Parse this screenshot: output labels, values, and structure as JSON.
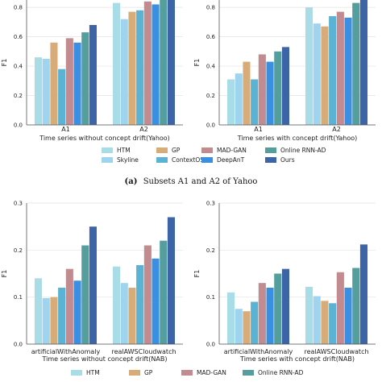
{
  "colors": {
    "HTM": "#a8dde8",
    "Skyline": "#9fd4ee",
    "GP": "#d8ac78",
    "ContextOSE": "#5bb3d4",
    "MAD-GAN": "#c28b90",
    "DeepAnT": "#3a8fe0",
    "Online RNN-AD": "#549e9e",
    "Ours": "#3d64a6"
  },
  "legend_a": {
    "entries": [
      "HTM",
      "GP",
      "MAD-GAN",
      "Online RNN-AD",
      "Skyline",
      "ContextOSE",
      "DeepAnT",
      "Ours"
    ]
  },
  "legend_b": {
    "entries_visible": [
      "HTM",
      "GP",
      "MAD-GAN",
      "Online RNN-AD"
    ]
  },
  "caption_a": {
    "label": "(a)",
    "text": "Subsets A1 and A2 of Yahoo"
  },
  "chart_data": [
    {
      "type": "bar",
      "categories": [
        "A1",
        "A2"
      ],
      "xlabel": "Time series without concept drift(Yahoo)",
      "ylabel": "F1",
      "ylim": [
        0,
        0.85
      ],
      "yticks": [
        "0.0",
        "0.2",
        "0.4",
        "0.6",
        "0.8"
      ],
      "series": [
        {
          "name": "HTM",
          "values": [
            0.46,
            0.83
          ]
        },
        {
          "name": "Skyline",
          "values": [
            0.45,
            0.72
          ]
        },
        {
          "name": "GP",
          "values": [
            0.56,
            0.77
          ]
        },
        {
          "name": "ContextOSE",
          "values": [
            0.38,
            0.78
          ]
        },
        {
          "name": "MAD-GAN",
          "values": [
            0.59,
            0.84
          ]
        },
        {
          "name": "DeepAnT",
          "values": [
            0.56,
            0.82
          ]
        },
        {
          "name": "Online RNN-AD",
          "values": [
            0.63,
            0.88
          ]
        },
        {
          "name": "Ours",
          "values": [
            0.68,
            0.9
          ]
        }
      ]
    },
    {
      "type": "bar",
      "categories": [
        "A1",
        "A2"
      ],
      "xlabel": "Time series with concept drift(Yahoo)",
      "ylabel": "F1",
      "ylim": [
        0,
        0.85
      ],
      "yticks": [
        "0.0",
        "0.2",
        "0.4",
        "0.6",
        "0.8"
      ],
      "series": [
        {
          "name": "HTM",
          "values": [
            0.31,
            0.8
          ]
        },
        {
          "name": "Skyline",
          "values": [
            0.35,
            0.69
          ]
        },
        {
          "name": "GP",
          "values": [
            0.43,
            0.67
          ]
        },
        {
          "name": "ContextOSE",
          "values": [
            0.31,
            0.74
          ]
        },
        {
          "name": "MAD-GAN",
          "values": [
            0.48,
            0.77
          ]
        },
        {
          "name": "DeepAnT",
          "values": [
            0.43,
            0.73
          ]
        },
        {
          "name": "Online RNN-AD",
          "values": [
            0.5,
            0.83
          ]
        },
        {
          "name": "Ours",
          "values": [
            0.53,
            0.95
          ]
        }
      ]
    },
    {
      "type": "bar",
      "categories": [
        "artificialWithAnomaly",
        "realAWSCloudwatch"
      ],
      "xlabel": "Time series without concept drift(NAB)",
      "ylabel": "F1",
      "ylim": [
        0,
        0.3
      ],
      "yticks": [
        "0.0",
        "0.1",
        "0.2",
        "0.3"
      ],
      "series": [
        {
          "name": "HTM",
          "values": [
            0.14,
            0.165
          ]
        },
        {
          "name": "Skyline",
          "values": [
            0.098,
            0.13
          ]
        },
        {
          "name": "GP",
          "values": [
            0.1,
            0.12
          ]
        },
        {
          "name": "ContextOSE",
          "values": [
            0.12,
            0.168
          ]
        },
        {
          "name": "MAD-GAN",
          "values": [
            0.16,
            0.21
          ]
        },
        {
          "name": "DeepAnT",
          "values": [
            0.135,
            0.182
          ]
        },
        {
          "name": "Online RNN-AD",
          "values": [
            0.21,
            0.22
          ]
        },
        {
          "name": "Ours",
          "values": [
            0.25,
            0.27
          ]
        }
      ]
    },
    {
      "type": "bar",
      "categories": [
        "artificialWithAnomaly",
        "realAWSCloudwatch"
      ],
      "xlabel": "Time series with concept drift(NAB)",
      "ylabel": "F1",
      "ylim": [
        0,
        0.3
      ],
      "yticks": [
        "0.0",
        "0.1",
        "0.2",
        "0.3"
      ],
      "series": [
        {
          "name": "HTM",
          "values": [
            0.11,
            0.122
          ]
        },
        {
          "name": "Skyline",
          "values": [
            0.075,
            0.102
          ]
        },
        {
          "name": "GP",
          "values": [
            0.07,
            0.092
          ]
        },
        {
          "name": "ContextOSE",
          "values": [
            0.09,
            0.087
          ]
        },
        {
          "name": "MAD-GAN",
          "values": [
            0.13,
            0.153
          ]
        },
        {
          "name": "DeepAnT",
          "values": [
            0.12,
            0.12
          ]
        },
        {
          "name": "Online RNN-AD",
          "values": [
            0.15,
            0.162
          ]
        },
        {
          "name": "Ours",
          "values": [
            0.16,
            0.212
          ]
        }
      ]
    }
  ]
}
